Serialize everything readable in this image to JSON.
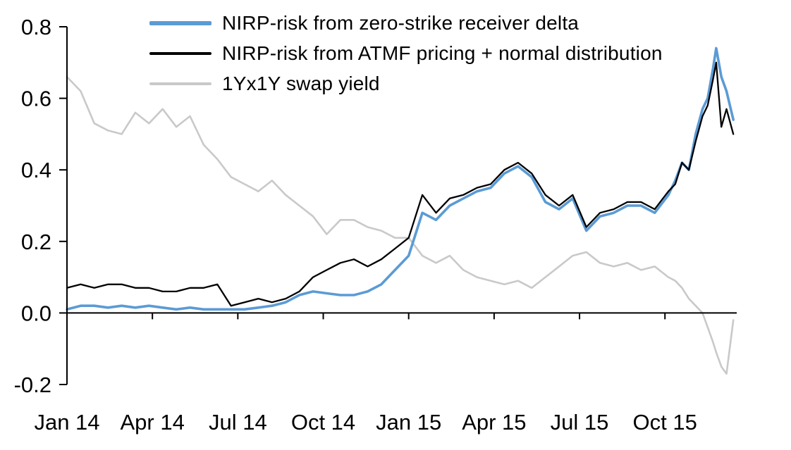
{
  "chart_data": {
    "type": "line",
    "title": "",
    "xlabel": "",
    "ylabel": "",
    "xlim": [
      2014.0,
      2015.96
    ],
    "ylim": [
      -0.2,
      0.8
    ],
    "grid": false,
    "legend_position": "top-left",
    "draw_order": [
      2,
      0,
      1
    ],
    "x": [
      2014.0,
      2014.04,
      2014.08,
      2014.12,
      2014.16,
      2014.2,
      2014.24,
      2014.28,
      2014.32,
      2014.36,
      2014.4,
      2014.44,
      2014.48,
      2014.52,
      2014.56,
      2014.6,
      2014.64,
      2014.68,
      2014.72,
      2014.76,
      2014.8,
      2014.84,
      2014.88,
      2014.92,
      2014.96,
      2015.0,
      2015.04,
      2015.08,
      2015.12,
      2015.16,
      2015.2,
      2015.24,
      2015.28,
      2015.32,
      2015.36,
      2015.4,
      2015.44,
      2015.48,
      2015.52,
      2015.56,
      2015.6,
      2015.64,
      2015.68,
      2015.72,
      2015.76,
      2015.78,
      2015.8,
      2015.82,
      2015.84,
      2015.86,
      2015.875,
      2015.89,
      2015.9,
      2015.915,
      2015.93,
      2015.95
    ],
    "series": [
      {
        "name": "NIRP-risk from zero-strike receiver delta",
        "color": "#5B9BD5",
        "width": 3.6,
        "values": [
          0.01,
          0.02,
          0.02,
          0.015,
          0.02,
          0.015,
          0.02,
          0.015,
          0.01,
          0.015,
          0.01,
          0.01,
          0.01,
          0.01,
          0.015,
          0.02,
          0.03,
          0.05,
          0.06,
          0.055,
          0.05,
          0.05,
          0.06,
          0.08,
          0.12,
          0.16,
          0.28,
          0.26,
          0.3,
          0.32,
          0.34,
          0.35,
          0.39,
          0.41,
          0.38,
          0.31,
          0.29,
          0.32,
          0.23,
          0.27,
          0.28,
          0.3,
          0.3,
          0.28,
          0.33,
          0.37,
          0.42,
          0.4,
          0.5,
          0.57,
          0.6,
          0.68,
          0.74,
          0.66,
          0.62,
          0.54
        ]
      },
      {
        "name": "NIRP-risk from ATMF pricing + normal distribution",
        "color": "#000000",
        "width": 2.3,
        "values": [
          0.07,
          0.08,
          0.07,
          0.08,
          0.08,
          0.07,
          0.07,
          0.06,
          0.06,
          0.07,
          0.07,
          0.08,
          0.02,
          0.03,
          0.04,
          0.03,
          0.04,
          0.06,
          0.1,
          0.12,
          0.14,
          0.15,
          0.13,
          0.15,
          0.18,
          0.21,
          0.33,
          0.28,
          0.32,
          0.33,
          0.35,
          0.36,
          0.4,
          0.42,
          0.39,
          0.33,
          0.3,
          0.33,
          0.24,
          0.28,
          0.29,
          0.31,
          0.31,
          0.29,
          0.34,
          0.36,
          0.42,
          0.4,
          0.48,
          0.55,
          0.58,
          0.65,
          0.7,
          0.52,
          0.57,
          0.5
        ]
      },
      {
        "name": "1Yx1Y swap yield",
        "color": "#C9C9C9",
        "width": 2.6,
        "values": [
          0.66,
          0.62,
          0.53,
          0.51,
          0.5,
          0.56,
          0.53,
          0.57,
          0.52,
          0.55,
          0.47,
          0.43,
          0.38,
          0.36,
          0.34,
          0.37,
          0.33,
          0.3,
          0.27,
          0.22,
          0.26,
          0.26,
          0.24,
          0.23,
          0.21,
          0.21,
          0.16,
          0.14,
          0.16,
          0.12,
          0.1,
          0.09,
          0.08,
          0.09,
          0.07,
          0.1,
          0.13,
          0.16,
          0.17,
          0.14,
          0.13,
          0.14,
          0.12,
          0.13,
          0.1,
          0.09,
          0.07,
          0.04,
          0.02,
          0.0,
          -0.04,
          -0.08,
          -0.11,
          -0.15,
          -0.17,
          -0.02
        ]
      }
    ],
    "xticks": [
      {
        "t": 2014.0,
        "label": "Jan 14"
      },
      {
        "t": 2014.25,
        "label": "Apr 14"
      },
      {
        "t": 2014.5,
        "label": "Jul 14"
      },
      {
        "t": 2014.75,
        "label": "Oct 14"
      },
      {
        "t": 2015.0,
        "label": "Jan 15"
      },
      {
        "t": 2015.25,
        "label": "Apr 15"
      },
      {
        "t": 2015.5,
        "label": "Jul 15"
      },
      {
        "t": 2015.75,
        "label": "Oct 15"
      }
    ],
    "yticks": [
      {
        "v": -0.2,
        "label": "-0.2"
      },
      {
        "v": 0.0,
        "label": "0.0"
      },
      {
        "v": 0.2,
        "label": "0.2"
      },
      {
        "v": 0.4,
        "label": "0.4"
      },
      {
        "v": 0.6,
        "label": "0.6"
      },
      {
        "v": 0.8,
        "label": "0.8"
      }
    ]
  }
}
